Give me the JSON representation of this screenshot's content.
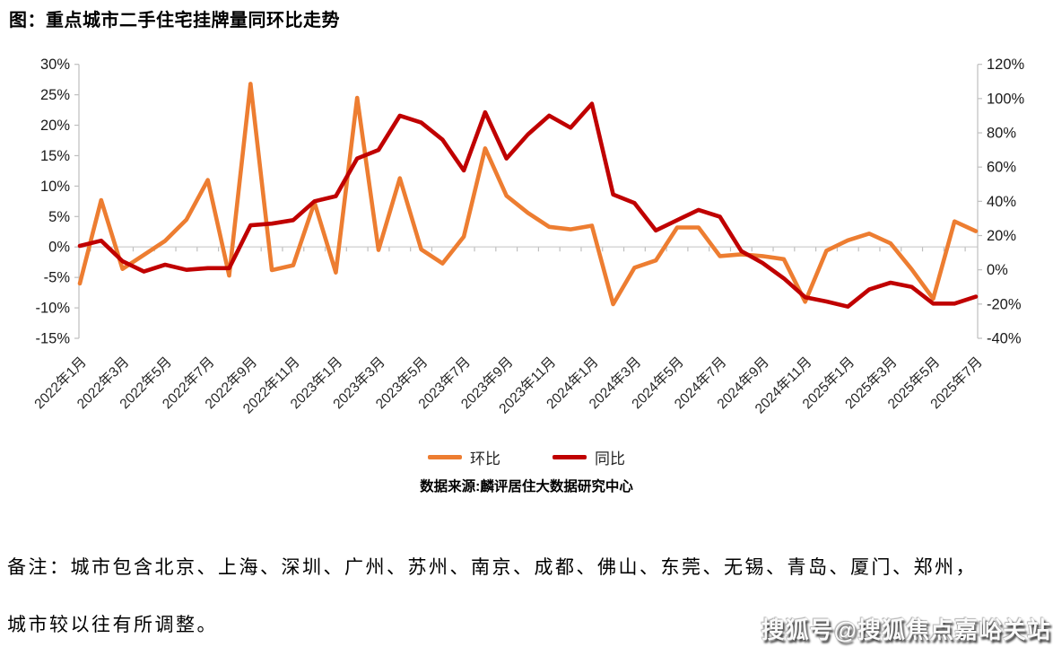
{
  "title": "图：重点城市二手住宅挂牌量同环比走势",
  "chart_data": {
    "type": "line",
    "x": [
      "2022年1月",
      "2022年2月",
      "2022年3月",
      "2022年4月",
      "2022年5月",
      "2022年6月",
      "2022年7月",
      "2022年8月",
      "2022年9月",
      "2022年10月",
      "2022年11月",
      "2022年12月",
      "2023年1月",
      "2023年2月",
      "2023年3月",
      "2023年4月",
      "2023年5月",
      "2023年6月",
      "2023年7月",
      "2023年8月",
      "2023年9月",
      "2023年10月",
      "2023年11月",
      "2023年12月",
      "2024年1月",
      "2024年2月",
      "2024年3月",
      "2024年4月",
      "2024年5月",
      "2024年6月",
      "2024年7月",
      "2024年8月",
      "2024年9月",
      "2024年10月",
      "2024年11月",
      "2024年12月",
      "2025年1月",
      "2025年2月",
      "2025年3月",
      "2025年4月",
      "2025年5月",
      "2025年6月",
      "2025年7月"
    ],
    "x_tick_labels": [
      "2022年1月",
      "2022年3月",
      "2022年5月",
      "2022年7月",
      "2022年9月",
      "2022年11月",
      "2023年1月",
      "2023年3月",
      "2023年5月",
      "2023年7月",
      "2023年9月",
      "2023年11月",
      "2024年1月",
      "2024年3月",
      "2024年5月",
      "2024年7月",
      "2024年9月",
      "2024年11月",
      "2025年1月",
      "2025年3月",
      "2025年5月",
      "2025年7月"
    ],
    "series": [
      {
        "name": "环比",
        "axis": "left",
        "color": "#ED7D31",
        "values": [
          -6.0,
          7.7,
          -3.6,
          -1.3,
          1.0,
          4.5,
          11.0,
          -4.7,
          26.8,
          -3.8,
          -3.0,
          7.3,
          -4.2,
          24.5,
          -0.5,
          11.3,
          -0.4,
          -2.7,
          1.7,
          16.2,
          8.4,
          5.6,
          3.3,
          2.9,
          3.5,
          -9.4,
          -3.4,
          -2.2,
          3.2,
          3.2,
          -1.5,
          -1.2,
          -1.5,
          -2.0,
          -9.0,
          -0.6,
          1.1,
          2.2,
          0.6,
          -3.7,
          -8.5,
          4.2,
          2.6
        ]
      },
      {
        "name": "同比",
        "axis": "right",
        "color": "#C00000",
        "values": [
          14,
          17,
          5,
          -1,
          3,
          0,
          1,
          1,
          26,
          27,
          29,
          40,
          43,
          65,
          70,
          90,
          86,
          76,
          58,
          92,
          65,
          79,
          90,
          83,
          97,
          44,
          39,
          23,
          29,
          35,
          31,
          11,
          4,
          -5,
          -16,
          -18.5,
          -21.5,
          -11.5,
          -7.5,
          -10,
          -19.7,
          -19.7,
          -15.7
        ]
      }
    ],
    "left_axis": {
      "min": -15,
      "max": 30,
      "tick_step": 5,
      "tick_labels": [
        "30%",
        "25%",
        "20%",
        "15%",
        "10%",
        "5%",
        "0%",
        "-5%",
        "-10%",
        "-15%"
      ]
    },
    "right_axis": {
      "min": -40,
      "max": 120,
      "tick_step": 20,
      "tick_labels": [
        "120%",
        "100%",
        "80%",
        "60%",
        "40%",
        "20%",
        "0%",
        "-20%",
        "-40%"
      ]
    },
    "legend": [
      "环比",
      "同比"
    ],
    "legend_position": "bottom",
    "grid": "zero-line-only"
  },
  "source_note": "数据来源:麟评居住大数据研究中心",
  "notes": {
    "line1": "备注：城市包含北京、上海、深圳、广州、苏州、南京、成都、佛山、东莞、无锡、青岛、厦门、郑州，",
    "line2": "城市较以往有所调整。"
  },
  "watermark": "搜狐号@搜狐焦点嘉峪关站",
  "colors": {
    "mom_line": "#ED7D31",
    "yoy_line": "#C00000",
    "zero_line": "#D9D9D9",
    "axis_line": "#BFBFBF",
    "axis_text": "#1a1a1a"
  }
}
